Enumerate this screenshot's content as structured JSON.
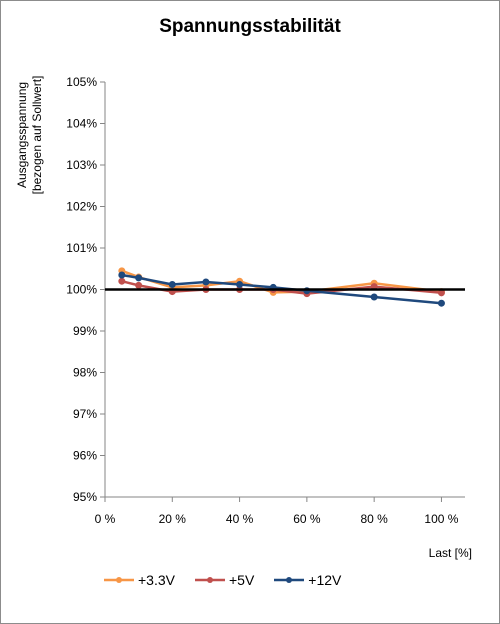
{
  "chart_data": {
    "type": "line",
    "title": "Spannungsstabilität",
    "ylabel_lines": [
      "Ausgangsspannung",
      "[bezogen auf Sollwert]"
    ],
    "xlabel": "Last [%]",
    "x": [
      5,
      10,
      20,
      30,
      40,
      50,
      60,
      80,
      100
    ],
    "xlim": [
      0,
      107
    ],
    "x_ticks": [
      0,
      20,
      40,
      60,
      80,
      100
    ],
    "x_tick_labels": [
      "0 %",
      "20 %",
      "40 %",
      "60 %",
      "80 %",
      "100 %"
    ],
    "ylim": [
      95,
      105
    ],
    "y_ticks": [
      95,
      96,
      97,
      98,
      99,
      100,
      101,
      102,
      103,
      104,
      105
    ],
    "y_tick_labels": [
      "95%",
      "96%",
      "97%",
      "98%",
      "99%",
      "100%",
      "101%",
      "102%",
      "103%",
      "104%",
      "105%"
    ],
    "reference_line": 100,
    "grid": false,
    "legend_position": "bottom",
    "series": [
      {
        "name": "+3.3V",
        "color": "#f79646",
        "values": [
          100.45,
          100.3,
          100.05,
          100.1,
          100.2,
          99.93,
          99.95,
          100.15,
          99.95
        ]
      },
      {
        "name": "+5V",
        "color": "#c0504d",
        "values": [
          100.2,
          100.1,
          99.95,
          100.0,
          100.0,
          100.0,
          99.9,
          100.07,
          99.92
        ]
      },
      {
        "name": "+12V",
        "color": "#1f497d",
        "values": [
          100.35,
          100.28,
          100.12,
          100.18,
          100.12,
          100.05,
          99.97,
          99.82,
          99.67
        ]
      }
    ]
  }
}
